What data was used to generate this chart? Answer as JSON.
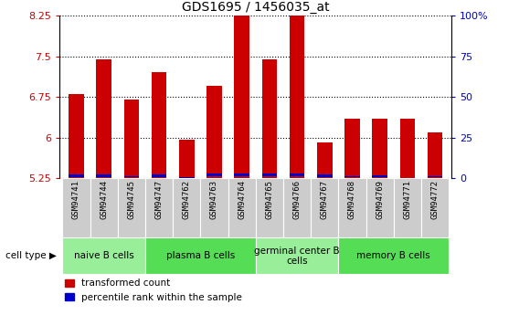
{
  "title": "GDS1695 / 1456035_at",
  "samples": [
    "GSM94741",
    "GSM94744",
    "GSM94745",
    "GSM94747",
    "GSM94762",
    "GSM94763",
    "GSM94764",
    "GSM94765",
    "GSM94766",
    "GSM94767",
    "GSM94768",
    "GSM94769",
    "GSM94771",
    "GSM94772"
  ],
  "transformed_count": [
    6.8,
    7.45,
    6.7,
    7.2,
    5.95,
    6.95,
    8.6,
    7.45,
    8.6,
    5.9,
    6.35,
    6.35,
    6.35,
    6.1
  ],
  "percentile_rank_pct": [
    13,
    12,
    7,
    12,
    2,
    14,
    14,
    14,
    14,
    12,
    5,
    10,
    4,
    5
  ],
  "ymin": 5.25,
  "ymax": 8.25,
  "yticks": [
    5.25,
    6.0,
    6.75,
    7.5,
    8.25
  ],
  "ytick_labels": [
    "5.25",
    "6",
    "6.75",
    "7.5",
    "8.25"
  ],
  "right_yticks_vals": [
    0,
    25,
    50,
    75,
    100
  ],
  "right_ytick_labels": [
    "0",
    "25",
    "50",
    "75",
    "100%"
  ],
  "bar_color": "#cc0000",
  "percentile_color": "#0000cc",
  "grid_color": "#000000",
  "cell_types": [
    {
      "label": "naive B cells",
      "start": 0,
      "end": 3,
      "color": "#99ee99"
    },
    {
      "label": "plasma B cells",
      "start": 3,
      "end": 7,
      "color": "#55dd55"
    },
    {
      "label": "germinal center B\ncells",
      "start": 7,
      "end": 10,
      "color": "#99ee99"
    },
    {
      "label": "memory B cells",
      "start": 10,
      "end": 14,
      "color": "#55dd55"
    }
  ],
  "legend_labels": [
    "transformed count",
    "percentile rank within the sample"
  ],
  "cell_type_label": "cell type",
  "bar_width": 0.55,
  "title_fontsize": 10,
  "tick_fontsize": 8,
  "sample_fontsize": 6.5,
  "celltype_fontsize": 7.5,
  "legend_fontsize": 7.5
}
